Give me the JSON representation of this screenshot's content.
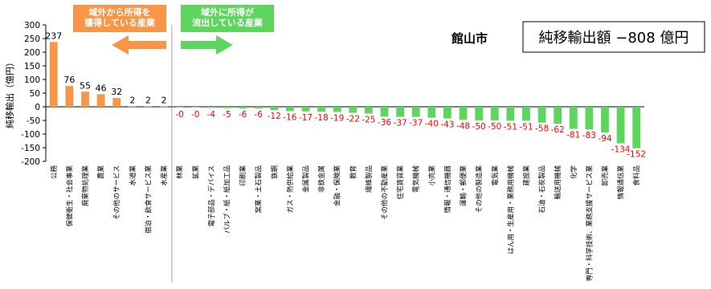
{
  "chart_data": {
    "type": "bar",
    "title": "館山市",
    "ylabel": "純移輸出（億円）",
    "ylim": [
      -200,
      300
    ],
    "yticks": [
      -200,
      -150,
      -100,
      -50,
      0,
      50,
      100,
      150,
      200,
      250,
      300
    ],
    "grid": false,
    "categories": [
      "公務",
      "保健衛生・社会事業",
      "廃棄物処理業",
      "農業",
      "その他のサービス",
      "水道業",
      "宿泊・飲食サービス業",
      "水産業",
      "林業",
      "鉱業",
      "電子部品・デバイス",
      "パルプ・紙・紙加工品",
      "印刷業",
      "窯業・土石製品",
      "鉄鋼",
      "ガス・熱供給業",
      "金属製品",
      "非鉄金属",
      "金融・保険業",
      "教育",
      "繊維製品",
      "その他の不動産業",
      "住宅賃貸業",
      "電気機械",
      "小売業",
      "情報・通信機器",
      "運輸・郵便業",
      "その他の製造業",
      "電気業",
      "はん用・生産用・業務用機械",
      "建設業",
      "石油・石炭製品",
      "輸送用機械",
      "化学",
      "専門・科学技術、業務支援サービス業",
      "卸売業",
      "情報通信業",
      "食料品"
    ],
    "values": [
      237,
      76,
      55,
      46,
      32,
      2,
      2,
      2,
      0,
      0,
      -4,
      -5,
      -6,
      -6,
      -12,
      -16,
      -17,
      -18,
      -19,
      -22,
      -25,
      -36,
      -37,
      -37,
      -40,
      -43,
      -48,
      -50,
      -50,
      -51,
      -51,
      -58,
      -62,
      -81,
      -83,
      -94,
      -134,
      -152
    ],
    "value_labels": [
      "237",
      "76",
      "55",
      "46",
      "32",
      "2",
      "2",
      "2",
      "-0",
      "-0",
      "-4",
      "-5",
      "-6",
      "-6",
      "-12",
      "-16",
      "-17",
      "-18",
      "-19",
      "-22",
      "-25",
      "-36",
      "-37",
      "-37",
      "-40",
      "-43",
      "-48",
      "-50",
      "-50",
      "-51",
      "-51",
      "-58",
      "-62",
      "-81",
      "-83",
      "-94",
      "-134",
      "-152"
    ],
    "colors": {
      "positive": "#f79646",
      "negative": "#5ed65e",
      "negative_label": "#ff0000",
      "positive_label": "#000000",
      "axis": "#000000",
      "divider": "#a6a6a6"
    }
  },
  "annotations": {
    "inflow_label": "域外から所得を\n獲得している産業",
    "outflow_label": "域外に所得が\n流出している産業",
    "inflow_color": "#f79646",
    "outflow_color": "#5ed65e",
    "net_export_text": "純移輸出額 −808 億円"
  }
}
